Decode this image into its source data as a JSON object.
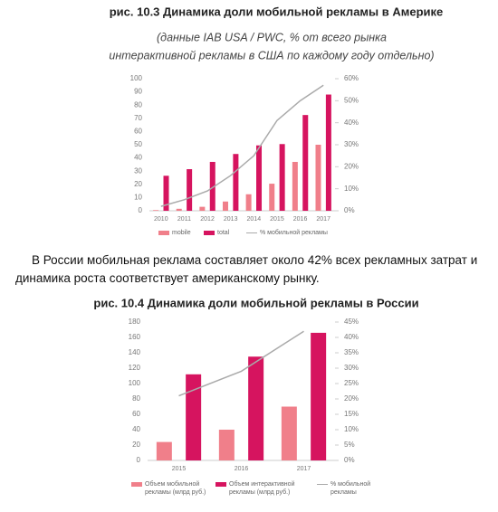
{
  "chart_data": [
    {
      "type": "bar",
      "title": "рис. 10.3 Динамика доли мобильной рекламы в Америке",
      "subtitle": [
        "(данные IAB USA / PWC, % от всего рынка",
        "интерактивной рекламы в США по каждому году отдельно)"
      ],
      "categories": [
        "2010",
        "2011",
        "2012",
        "2013",
        "2014",
        "2015",
        "2016",
        "2017"
      ],
      "series": [
        {
          "name": "mobile",
          "color": "#f07f8a",
          "values": [
            0.5,
            1.5,
            3,
            7,
            12.5,
            20.5,
            37,
            50
          ]
        },
        {
          "name": "total",
          "color": "#d6145f",
          "values": [
            26.5,
            31.5,
            37,
            43,
            49.5,
            50.5,
            72.5,
            88
          ]
        },
        {
          "name": "% мобильной рекламы",
          "color": "#aaaaaa",
          "type": "line",
          "axis": "y2",
          "values": [
            2,
            5,
            9,
            16,
            25,
            41,
            50,
            57
          ]
        }
      ],
      "ylim": [
        0,
        100
      ],
      "yticks": [
        0,
        10,
        20,
        30,
        40,
        50,
        60,
        70,
        80,
        90,
        100
      ],
      "y2lim": [
        0,
        60
      ],
      "y2ticks": [
        {
          "value": 0,
          "label": "0%"
        },
        {
          "value": 10,
          "label": "10%"
        },
        {
          "value": 20,
          "label": "20%"
        },
        {
          "value": 30,
          "label": "30%"
        },
        {
          "value": 40,
          "label": "40%"
        },
        {
          "value": 50,
          "label": "50%"
        },
        {
          "value": 60,
          "label": "60%"
        }
      ]
    },
    {
      "type": "bar",
      "title": "рис. 10.4 Динамика доли мобильной рекламы в России",
      "categories": [
        "2015",
        "2016",
        "2017"
      ],
      "series": [
        {
          "name": "Объем мобильной рекламы (млрд руб.)",
          "color": "#f07f8a",
          "values": [
            24,
            40,
            70
          ]
        },
        {
          "name": "Объем интерактивной рекламы (млрд руб.)",
          "color": "#d6145f",
          "values": [
            112,
            135,
            166
          ]
        },
        {
          "name": "% мобильной рекламы",
          "color": "#aaaaaa",
          "type": "line",
          "axis": "y2",
          "values": [
            21,
            29,
            42
          ]
        }
      ],
      "ylim": [
        0,
        180
      ],
      "yticks": [
        0,
        20,
        40,
        60,
        80,
        100,
        120,
        140,
        160,
        180
      ],
      "y2lim": [
        0,
        45
      ],
      "y2ticks": [
        {
          "value": 0,
          "label": "0%"
        },
        {
          "value": 5,
          "label": "5%"
        },
        {
          "value": 10,
          "label": "10%"
        },
        {
          "value": 15,
          "label": "15%"
        },
        {
          "value": 20,
          "label": "20%"
        },
        {
          "value": 25,
          "label": "25%"
        },
        {
          "value": 30,
          "label": "30%"
        },
        {
          "value": 35,
          "label": "35%"
        },
        {
          "value": 40,
          "label": "40%"
        },
        {
          "value": 45,
          "label": "45%"
        }
      ]
    }
  ],
  "text": "В России мобильная реклама составляет около 42% всех рекламных затрат и динамика роста соответствует американскому рынку."
}
